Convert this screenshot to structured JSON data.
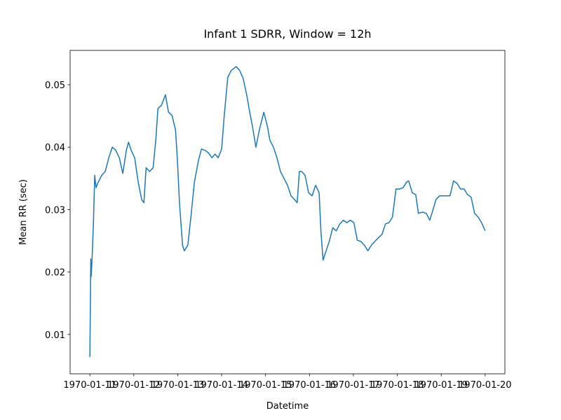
{
  "chart_data": {
    "type": "line",
    "title": "Infant 1 SDRR, Window = 12h",
    "xlabel": "Datetime",
    "ylabel": "Mean RR (sec)",
    "color": "#1f77b4",
    "x": [
      10.0,
      10.02,
      10.03,
      10.05,
      10.08,
      10.11,
      10.14,
      10.19,
      10.27,
      10.35,
      10.43,
      10.51,
      10.59,
      10.67,
      10.75,
      10.83,
      10.88,
      10.94,
      11.02,
      11.1,
      11.18,
      11.23,
      11.28,
      11.36,
      11.44,
      11.5,
      11.55,
      11.63,
      11.72,
      11.79,
      11.87,
      11.95,
      11.99,
      12.04,
      12.11,
      12.15,
      12.23,
      12.3,
      12.38,
      12.47,
      12.54,
      12.62,
      12.7,
      12.78,
      12.85,
      12.92,
      13.0,
      13.06,
      13.14,
      13.22,
      13.33,
      13.41,
      13.49,
      13.57,
      13.64,
      13.7,
      13.78,
      13.86,
      13.96,
      14.04,
      14.1,
      14.18,
      14.26,
      14.34,
      14.42,
      14.5,
      14.58,
      14.66,
      14.72,
      14.77,
      14.82,
      14.9,
      14.98,
      15.06,
      15.14,
      15.22,
      15.26,
      15.31,
      15.37,
      15.45,
      15.53,
      15.61,
      15.69,
      15.77,
      15.85,
      15.93,
      16.01,
      16.09,
      16.17,
      16.25,
      16.33,
      16.41,
      16.49,
      16.57,
      16.65,
      16.73,
      16.81,
      16.89,
      16.97,
      17.05,
      17.13,
      17.21,
      17.26,
      17.34,
      17.42,
      17.48,
      17.58,
      17.66,
      17.74,
      17.81,
      17.88,
      17.96,
      18.12,
      18.2,
      18.28,
      18.36,
      18.44,
      18.52,
      18.6,
      18.68,
      18.76,
      18.84,
      18.92,
      19.0
    ],
    "values": [
      0.0064,
      0.0221,
      0.0193,
      0.0221,
      0.0277,
      0.0355,
      0.0335,
      0.0344,
      0.0355,
      0.0361,
      0.0383,
      0.04,
      0.0395,
      0.0383,
      0.0358,
      0.0395,
      0.0408,
      0.0395,
      0.0383,
      0.0344,
      0.0316,
      0.0311,
      0.0367,
      0.0361,
      0.0367,
      0.0411,
      0.0462,
      0.0467,
      0.0484,
      0.0456,
      0.0451,
      0.0428,
      0.0383,
      0.0311,
      0.0243,
      0.0234,
      0.0243,
      0.0288,
      0.0344,
      0.0378,
      0.0397,
      0.0395,
      0.0391,
      0.0383,
      0.0389,
      0.0383,
      0.0397,
      0.0451,
      0.0512,
      0.0523,
      0.0529,
      0.0523,
      0.051,
      0.0484,
      0.0456,
      0.0434,
      0.04,
      0.0428,
      0.0456,
      0.0434,
      0.0411,
      0.04,
      0.0383,
      0.0361,
      0.035,
      0.0339,
      0.0322,
      0.0316,
      0.0311,
      0.0361,
      0.0361,
      0.0355,
      0.0327,
      0.0322,
      0.0339,
      0.0327,
      0.0266,
      0.0219,
      0.0232,
      0.0249,
      0.0271,
      0.0266,
      0.0277,
      0.0283,
      0.0279,
      0.0283,
      0.0279,
      0.0251,
      0.0249,
      0.0243,
      0.0234,
      0.0243,
      0.0249,
      0.0255,
      0.026,
      0.0277,
      0.0279,
      0.0288,
      0.0333,
      0.0333,
      0.0335,
      0.0344,
      0.0346,
      0.0327,
      0.0324,
      0.0294,
      0.0296,
      0.0294,
      0.0283,
      0.0299,
      0.0316,
      0.0322,
      0.0322,
      0.0322,
      0.0346,
      0.0342,
      0.0333,
      0.0333,
      0.0324,
      0.032,
      0.0294,
      0.0288,
      0.0279,
      0.0266
    ],
    "xlim": [
      9.55,
      19.45
    ],
    "ylim": [
      0.0037,
      0.0555
    ],
    "xticks": [
      {
        "value": 10,
        "label": "1970-01-11"
      },
      {
        "value": 11,
        "label": "1970-01-12"
      },
      {
        "value": 12,
        "label": "1970-01-13"
      },
      {
        "value": 13,
        "label": "1970-01-14"
      },
      {
        "value": 14,
        "label": "1970-01-15"
      },
      {
        "value": 15,
        "label": "1970-01-16"
      },
      {
        "value": 16,
        "label": "1970-01-17"
      },
      {
        "value": 17,
        "label": "1970-01-18"
      },
      {
        "value": 18,
        "label": "1970-01-19"
      },
      {
        "value": 19,
        "label": "1970-01-20"
      }
    ],
    "yticks": [
      0.01,
      0.02,
      0.03,
      0.04,
      0.05
    ],
    "grid": false
  }
}
